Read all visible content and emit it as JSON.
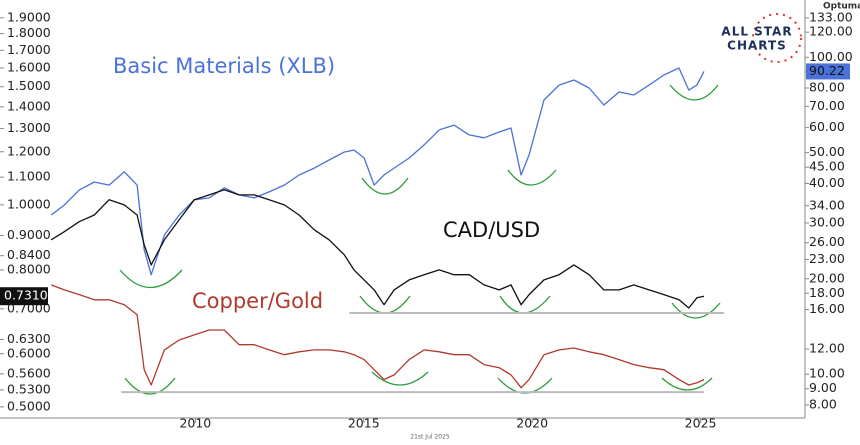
{
  "chart_data": {
    "type": "line",
    "source": "Optuma",
    "date_label": "21st Jul 2025",
    "logo": [
      "ALL STAR",
      "CHARTS"
    ],
    "x": [
      2005.72,
      2006.11,
      2006.55,
      2007.0,
      2007.44,
      2007.89,
      2008.27,
      2008.48,
      2008.69,
      2009.08,
      2009.52,
      2009.97,
      2010.41,
      2010.86,
      2011.3,
      2011.75,
      2012.19,
      2012.64,
      2013.08,
      2013.53,
      2013.97,
      2014.42,
      2014.71,
      2015.01,
      2015.31,
      2015.6,
      2015.9,
      2016.35,
      2016.79,
      2017.24,
      2017.68,
      2018.13,
      2018.57,
      2019.02,
      2019.37,
      2019.67,
      2019.91,
      2020.35,
      2020.8,
      2021.24,
      2021.69,
      2022.13,
      2022.58,
      2023.02,
      2023.47,
      2023.91,
      2024.36,
      2024.65,
      2024.89,
      2025.1
    ],
    "xlim": [
      2004.2,
      2028.1
    ],
    "xticks": [
      2010,
      2015,
      2020,
      2025
    ],
    "ylim": [
      0.478,
      2.02
    ],
    "y2lim": [
      7.17,
      151.6
    ],
    "log_scale": true,
    "yticks": [
      {
        "value": 1.9,
        "label": "1.9000"
      },
      {
        "value": 1.8,
        "label": "1.8000"
      },
      {
        "value": 1.7,
        "label": "1.7000"
      },
      {
        "value": 1.6,
        "label": "1.6000"
      },
      {
        "value": 1.5,
        "label": "1.5000"
      },
      {
        "value": 1.4,
        "label": "1.4000"
      },
      {
        "value": 1.3,
        "label": "1.3000"
      },
      {
        "value": 1.2,
        "label": "1.2000"
      },
      {
        "value": 1.1,
        "label": "1.1000"
      },
      {
        "value": 1.0,
        "label": "1.0000"
      },
      {
        "value": 0.9,
        "label": "0.9000"
      },
      {
        "value": 0.84,
        "label": "0.8400"
      },
      {
        "value": 0.8,
        "label": "0.8000"
      },
      {
        "value": 0.7,
        "label": "0.7000"
      },
      {
        "value": 0.63,
        "label": "0.6300"
      },
      {
        "value": 0.6,
        "label": "0.6000"
      },
      {
        "value": 0.56,
        "label": "0.5600"
      },
      {
        "value": 0.53,
        "label": "0.5300"
      },
      {
        "value": 0.5,
        "label": "0.5000"
      }
    ],
    "y2ticks": [
      {
        "value": 133,
        "label": "133.00"
      },
      {
        "value": 120,
        "label": "120.00"
      },
      {
        "value": 100,
        "label": "100.00"
      },
      {
        "value": 90,
        "label": "90.00"
      },
      {
        "value": 80,
        "label": "80.00"
      },
      {
        "value": 70,
        "label": "70.00"
      },
      {
        "value": 60,
        "label": "60.00"
      },
      {
        "value": 50,
        "label": "50.00"
      },
      {
        "value": 45,
        "label": "45.00"
      },
      {
        "value": 40,
        "label": "40.00"
      },
      {
        "value": 34,
        "label": "34.00"
      },
      {
        "value": 30,
        "label": "30.00"
      },
      {
        "value": 26,
        "label": "26.00"
      },
      {
        "value": 23,
        "label": "23.00"
      },
      {
        "value": 20,
        "label": "20.00"
      },
      {
        "value": 18,
        "label": "18.00"
      },
      {
        "value": 16,
        "label": "16.00"
      },
      {
        "value": 12,
        "label": "12.00"
      },
      {
        "value": 10,
        "label": "10.00"
      },
      {
        "value": 9,
        "label": "9.00"
      },
      {
        "value": 8,
        "label": "8.00"
      }
    ],
    "series": [
      {
        "name": "Basic Materials (XLB)",
        "color": "#4a72d8",
        "axis": "y2",
        "values": [
          31.8,
          34.2,
          38.1,
          40.4,
          39.5,
          43.5,
          39.5,
          24.7,
          20.6,
          27.5,
          31.8,
          35.5,
          36.0,
          38.7,
          36.8,
          36.0,
          37.6,
          39.5,
          42.5,
          44.7,
          47.4,
          50.2,
          51.0,
          48.1,
          39.5,
          42.5,
          44.7,
          48.1,
          52.9,
          59.0,
          61.1,
          56.9,
          55.7,
          58.1,
          59.8,
          42.5,
          49.2,
          73.3,
          81.7,
          84.8,
          80.0,
          70.7,
          77.7,
          76.0,
          81.7,
          87.9,
          92.5,
          78.8,
          81.7,
          90.22
        ]
      },
      {
        "name": "CAD/USD",
        "color": "#111111",
        "axis": "y",
        "last_label": "0.7310",
        "values": [
          0.887,
          0.912,
          0.944,
          0.966,
          1.018,
          1.0,
          0.966,
          0.872,
          0.814,
          0.887,
          0.95,
          1.018,
          1.035,
          1.053,
          1.035,
          1.035,
          1.018,
          1.0,
          0.966,
          0.918,
          0.887,
          0.843,
          0.8,
          0.773,
          0.747,
          0.71,
          0.747,
          0.773,
          0.787,
          0.8,
          0.787,
          0.787,
          0.76,
          0.747,
          0.76,
          0.71,
          0.735,
          0.773,
          0.787,
          0.814,
          0.787,
          0.747,
          0.747,
          0.76,
          0.747,
          0.735,
          0.722,
          0.702,
          0.727,
          0.731
        ]
      },
      {
        "name": "Copper/Gold",
        "color": "#b03a2e",
        "axis": "y",
        "values": [
          0.76,
          0.747,
          0.735,
          0.722,
          0.722,
          0.71,
          0.686,
          0.568,
          0.539,
          0.608,
          0.629,
          0.64,
          0.651,
          0.651,
          0.619,
          0.619,
          0.608,
          0.598,
          0.604,
          0.608,
          0.608,
          0.604,
          0.598,
          0.588,
          0.568,
          0.549,
          0.558,
          0.588,
          0.608,
          0.604,
          0.598,
          0.598,
          0.578,
          0.572,
          0.558,
          0.534,
          0.549,
          0.598,
          0.608,
          0.612,
          0.604,
          0.598,
          0.588,
          0.578,
          0.572,
          0.568,
          0.549,
          0.539,
          0.543,
          0.549
        ]
      }
    ],
    "hlines": [
      {
        "value": 0.69,
        "xlim": [
          2014.57,
          2025.69
        ]
      },
      {
        "value": 0.526,
        "xlim": [
          2007.8,
          2025.1
        ]
      }
    ]
  }
}
